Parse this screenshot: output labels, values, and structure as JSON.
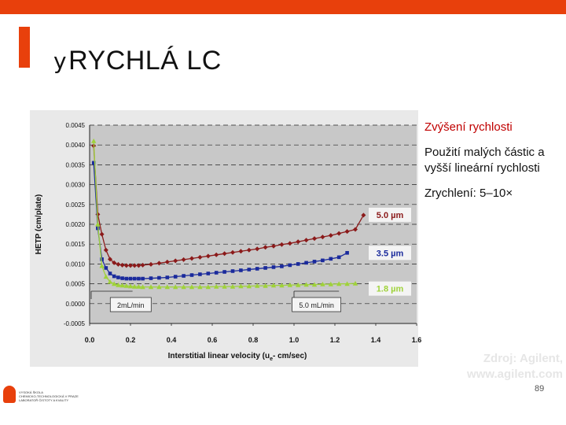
{
  "slide": {
    "title": "RYCHLÁ LC",
    "bullet_glyph": "y",
    "notes": [
      "Zvýšení rychlosti",
      "Použití malých částic a vyšší lineární rychlosti",
      "Zrychlení: 5–10×"
    ],
    "source_line1": "Zdroj: Agilent,",
    "source_line2": "www.agilent.com",
    "page_number": "89",
    "logo_lines": [
      "VYSOKÁ ŠKOLA",
      "CHEMICKO-TECHNOLOGICKÁ V PRAZE",
      "LABORATOŘ ČISTOTY A KVALITY"
    ]
  },
  "colors": {
    "accent": "#e8400c",
    "series_50": "#8b1a1a",
    "series_35": "#1a2a9c",
    "series_18": "#9fd23a"
  },
  "chart_data": {
    "type": "line",
    "xlabel": "Interstitial linear velocity (u",
    "xlabel_sub": "e",
    "xlabel_end": "- cm/sec)",
    "ylabel": "HETP (cm/plate)",
    "xlim": [
      0.0,
      1.6
    ],
    "ylim": [
      -0.0005,
      0.0045
    ],
    "x_ticks": [
      "0.0",
      "0.2",
      "0.4",
      "0.6",
      "0.8",
      "1.0",
      "1.2",
      "1.4",
      "1.6"
    ],
    "y_ticks": [
      "0.0045",
      "0.0040",
      "0.0035",
      "0.0030",
      "0.0025",
      "0.0020",
      "0.0015",
      "0.0010",
      "0.0005",
      "0.0000",
      "-0.0005"
    ],
    "grid": "horizontal dashed",
    "series": [
      {
        "name": "5.0 µm",
        "x": [
          0.02,
          0.04,
          0.06,
          0.08,
          0.1,
          0.12,
          0.14,
          0.16,
          0.18,
          0.2,
          0.22,
          0.24,
          0.26,
          0.3,
          0.34,
          0.38,
          0.42,
          0.46,
          0.5,
          0.54,
          0.58,
          0.62,
          0.66,
          0.7,
          0.74,
          0.78,
          0.82,
          0.86,
          0.9,
          0.94,
          0.98,
          1.02,
          1.06,
          1.1,
          1.14,
          1.18,
          1.22,
          1.26,
          1.3,
          1.34
        ],
        "y": [
          0.00398,
          0.00225,
          0.00175,
          0.00135,
          0.00112,
          0.00103,
          0.00099,
          0.00097,
          0.00096,
          0.00096,
          0.00096,
          0.00096,
          0.00097,
          0.00099,
          0.00102,
          0.00105,
          0.00108,
          0.00111,
          0.00114,
          0.00117,
          0.0012,
          0.00123,
          0.00126,
          0.00129,
          0.00132,
          0.00135,
          0.00138,
          0.00142,
          0.00145,
          0.00149,
          0.00152,
          0.00156,
          0.0016,
          0.00164,
          0.00168,
          0.00172,
          0.00177,
          0.00182,
          0.00187,
          0.00223
        ]
      },
      {
        "name": "3.5 µm",
        "x": [
          0.02,
          0.04,
          0.06,
          0.08,
          0.1,
          0.12,
          0.14,
          0.16,
          0.18,
          0.2,
          0.22,
          0.24,
          0.26,
          0.3,
          0.34,
          0.38,
          0.42,
          0.46,
          0.5,
          0.54,
          0.58,
          0.62,
          0.66,
          0.7,
          0.74,
          0.78,
          0.82,
          0.86,
          0.9,
          0.94,
          0.98,
          1.02,
          1.06,
          1.1,
          1.14,
          1.18,
          1.22,
          1.26
        ],
        "y": [
          0.00355,
          0.0019,
          0.00112,
          0.0009,
          0.00076,
          0.00069,
          0.00066,
          0.00064,
          0.00063,
          0.00063,
          0.00063,
          0.00063,
          0.00063,
          0.00064,
          0.00065,
          0.00066,
          0.00068,
          0.0007,
          0.00072,
          0.00074,
          0.00076,
          0.00078,
          0.0008,
          0.00082,
          0.00084,
          0.00086,
          0.00088,
          0.0009,
          0.00092,
          0.00094,
          0.00097,
          0.001,
          0.00103,
          0.00106,
          0.00109,
          0.00113,
          0.00117,
          0.00128
        ]
      },
      {
        "name": "1.8 µm",
        "x": [
          0.02,
          0.04,
          0.06,
          0.08,
          0.1,
          0.12,
          0.14,
          0.16,
          0.18,
          0.2,
          0.22,
          0.24,
          0.26,
          0.3,
          0.34,
          0.38,
          0.42,
          0.46,
          0.5,
          0.54,
          0.58,
          0.62,
          0.66,
          0.7,
          0.74,
          0.78,
          0.82,
          0.86,
          0.9,
          0.94,
          0.98,
          1.02,
          1.06,
          1.1,
          1.14,
          1.18,
          1.22,
          1.26,
          1.3
        ],
        "y": [
          0.0041,
          0.002,
          0.00095,
          0.00068,
          0.00055,
          0.0005,
          0.00047,
          0.00046,
          0.00045,
          0.00044,
          0.00043,
          0.00043,
          0.00042,
          0.00042,
          0.00042,
          0.00042,
          0.00042,
          0.00042,
          0.00042,
          0.00042,
          0.00042,
          0.00043,
          0.00043,
          0.00043,
          0.00044,
          0.00044,
          0.00045,
          0.00045,
          0.00046,
          0.00046,
          0.00047,
          0.00047,
          0.00048,
          0.00048,
          0.00049,
          0.00049,
          0.0005,
          0.0005,
          0.00051
        ]
      }
    ],
    "series_labels": [
      "5.0 µm",
      "3.5 µm",
      "1.8 µm"
    ],
    "annotations": [
      {
        "text": "2mL/min",
        "arrow_x": [
          0.0,
          0.21
        ]
      },
      {
        "text": "5.0 mL/min",
        "arrow_x": [
          1.0,
          1.22
        ]
      }
    ]
  }
}
